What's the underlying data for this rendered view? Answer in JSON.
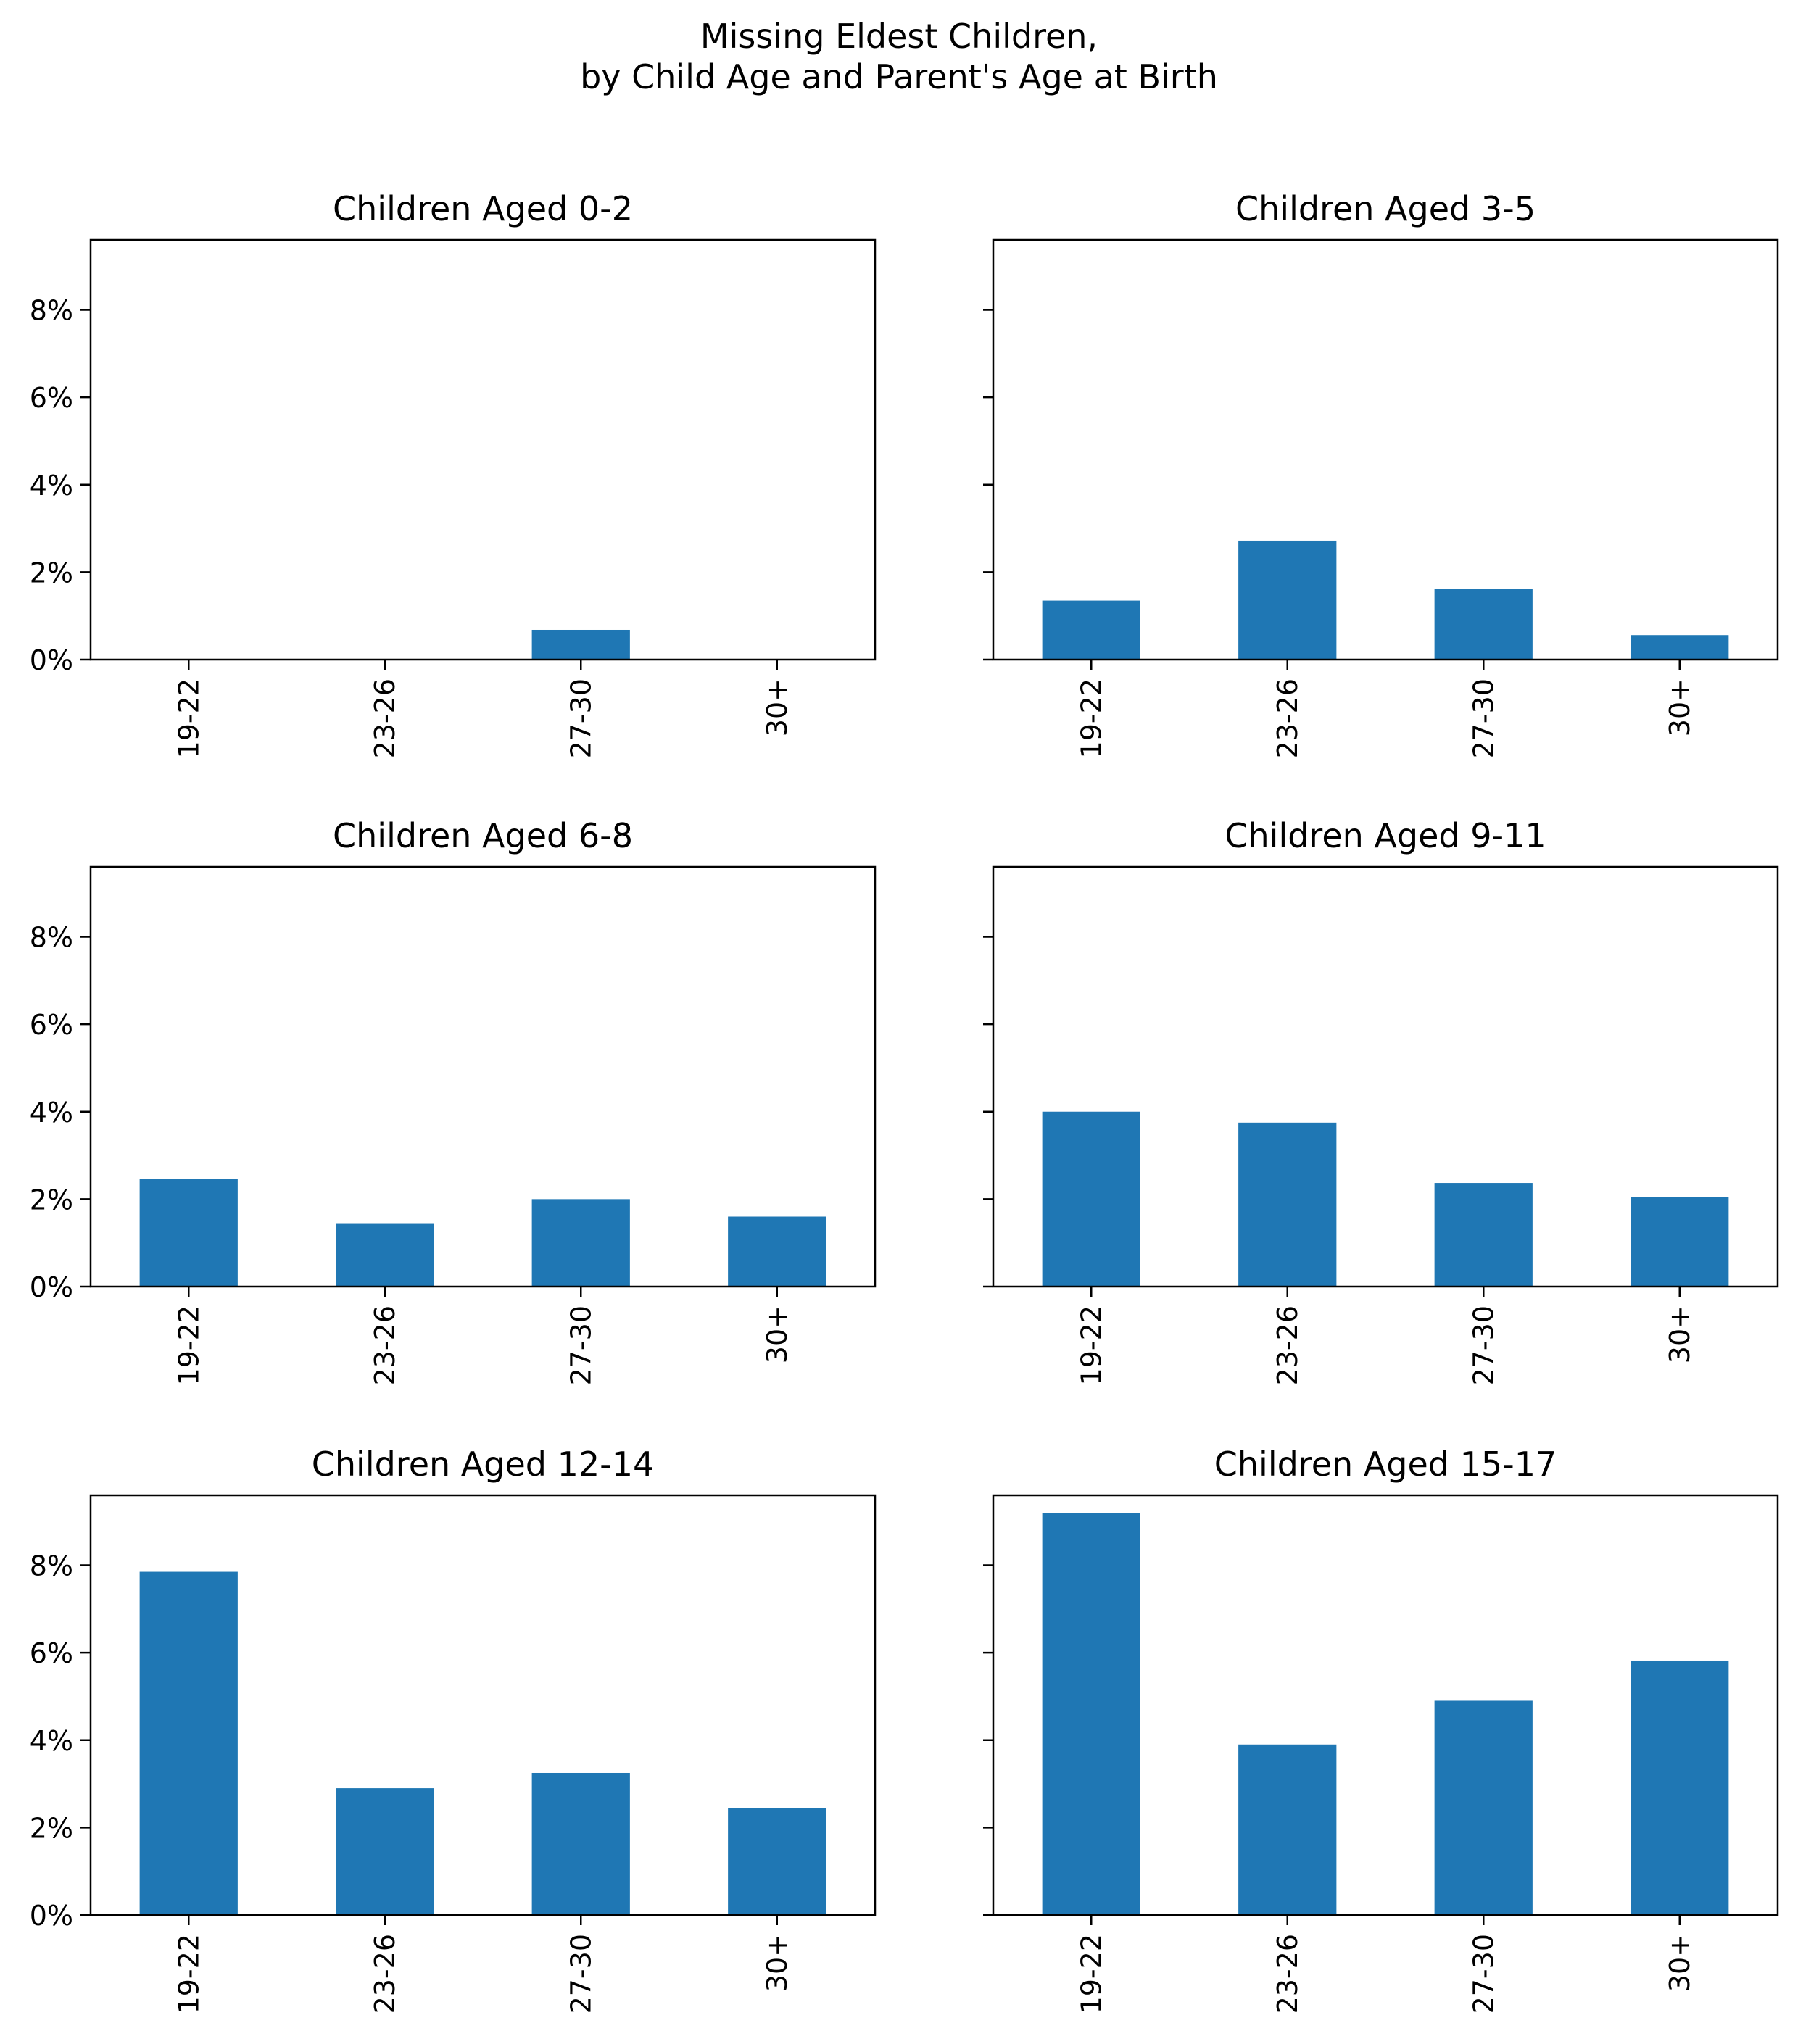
{
  "figure": {
    "title_lines": [
      "Missing Eldest Children,",
      "by Child Age and Parent's Age at Birth"
    ]
  },
  "chart_data": [
    {
      "type": "bar",
      "title": "Children Aged 0-2",
      "categories": [
        "19-22",
        "23-26",
        "27-30",
        "30+"
      ],
      "values": [
        0.0,
        0.0,
        0.68,
        0.0
      ],
      "unit": "%",
      "ylim": [
        0,
        9.6
      ],
      "yticks": [
        "0%",
        "2%",
        "4%",
        "6%",
        "8%"
      ],
      "xlabel": "",
      "ylabel": "",
      "bar_color": "#1f77b4",
      "grid": false
    },
    {
      "type": "bar",
      "title": "Children Aged 3-5",
      "categories": [
        "19-22",
        "23-26",
        "27-30",
        "30+"
      ],
      "values": [
        1.35,
        2.72,
        1.62,
        0.56
      ],
      "unit": "%",
      "ylim": [
        0,
        9.6
      ],
      "yticks": [
        "0%",
        "2%",
        "4%",
        "6%",
        "8%"
      ],
      "xlabel": "",
      "ylabel": "",
      "bar_color": "#1f77b4",
      "grid": false
    },
    {
      "type": "bar",
      "title": "Children Aged 6-8",
      "categories": [
        "19-22",
        "23-26",
        "27-30",
        "30+"
      ],
      "values": [
        2.47,
        1.45,
        2.0,
        1.6
      ],
      "unit": "%",
      "ylim": [
        0,
        9.6
      ],
      "yticks": [
        "0%",
        "2%",
        "4%",
        "6%",
        "8%"
      ],
      "xlabel": "",
      "ylabel": "",
      "bar_color": "#1f77b4",
      "grid": false
    },
    {
      "type": "bar",
      "title": "Children Aged 9-11",
      "categories": [
        "19-22",
        "23-26",
        "27-30",
        "30+"
      ],
      "values": [
        4.0,
        3.75,
        2.37,
        2.04
      ],
      "unit": "%",
      "ylim": [
        0,
        9.6
      ],
      "yticks": [
        "0%",
        "2%",
        "4%",
        "6%",
        "8%"
      ],
      "xlabel": "",
      "ylabel": "",
      "bar_color": "#1f77b4",
      "grid": false
    },
    {
      "type": "bar",
      "title": "Children Aged 12-14",
      "categories": [
        "19-22",
        "23-26",
        "27-30",
        "30+"
      ],
      "values": [
        7.85,
        2.9,
        3.25,
        2.45
      ],
      "unit": "%",
      "ylim": [
        0,
        9.6
      ],
      "yticks": [
        "0%",
        "2%",
        "4%",
        "6%",
        "8%"
      ],
      "xlabel": "",
      "ylabel": "",
      "bar_color": "#1f77b4",
      "grid": false
    },
    {
      "type": "bar",
      "title": "Children Aged 15-17",
      "categories": [
        "19-22",
        "23-26",
        "27-30",
        "30+"
      ],
      "values": [
        9.2,
        3.9,
        4.9,
        5.82
      ],
      "unit": "%",
      "ylim": [
        0,
        9.6
      ],
      "yticks": [
        "0%",
        "2%",
        "4%",
        "6%",
        "8%"
      ],
      "xlabel": "",
      "ylabel": "",
      "bar_color": "#1f77b4",
      "grid": false
    }
  ]
}
